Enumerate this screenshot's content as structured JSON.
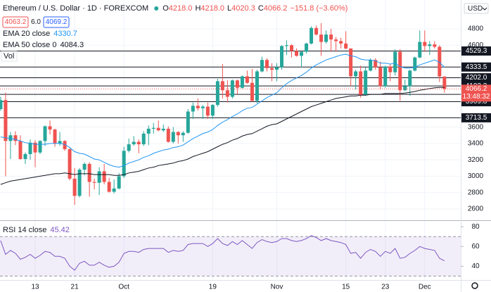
{
  "chart_data": {
    "type": "candlestick",
    "title": "Ethereum / U.S. Dollar · 1D · FOREXCOM",
    "header_keys": [
      "O",
      "H",
      "L",
      "C"
    ],
    "header_labels": [
      "4218.0",
      "4218.0",
      "4020.3",
      "4066.2"
    ],
    "header_change": "−151.8 (−3.60%)",
    "trade_boxes": [
      "4063.2",
      "6.0",
      "4069.2"
    ],
    "volume_label": "Vol",
    "currency": "USD",
    "countdown": "13:48:32",
    "up_color": "#26a69a",
    "down_color": "#ef5350",
    "grid": true,
    "categories": [
      null,
      null,
      null,
      null,
      null,
      null,
      null,
      "13",
      null,
      null,
      null,
      null,
      null,
      null,
      null,
      "21",
      null,
      null,
      null,
      null,
      null,
      null,
      null,
      null,
      null,
      "Oct",
      null,
      null,
      null,
      null,
      null,
      null,
      null,
      null,
      null,
      null,
      null,
      null,
      null,
      null,
      null,
      null,
      null,
      "19",
      null,
      null,
      null,
      null,
      null,
      null,
      null,
      null,
      null,
      null,
      null,
      null,
      "Nov",
      null,
      null,
      null,
      null,
      null,
      null,
      null,
      null,
      null,
      null,
      null,
      null,
      null,
      "15",
      null,
      null,
      null,
      null,
      null,
      null,
      null,
      "23",
      null,
      null,
      null,
      null,
      null,
      null,
      null,
      "Dec",
      null,
      null,
      null,
      null
    ],
    "ohlc": {
      "open": [
        3820,
        3930,
        3430,
        3500,
        3430,
        3210,
        3270,
        3410,
        3290,
        3430,
        3610,
        3570,
        3400,
        3430,
        3330,
        2970,
        2760,
        3080,
        3150,
        2930,
        2920,
        3060,
        2930,
        2810,
        2850,
        3000,
        3310,
        3390,
        3420,
        3390,
        3520,
        3580,
        3590,
        3560,
        3580,
        3420,
        3540,
        3500,
        3530,
        3790,
        3860,
        3830,
        3850,
        3740,
        3870,
        4160,
        4050,
        3970,
        4170,
        4080,
        4220,
        4140,
        3920,
        4280,
        4420,
        4320,
        4300,
        4330,
        4590,
        4600,
        4530,
        4470,
        4520,
        4620,
        4810,
        4730,
        4640,
        4730,
        4670,
        4650,
        4620,
        4560,
        4220,
        4280,
        3990,
        4290,
        4420,
        4330,
        4100,
        4340,
        4270,
        4520,
        4050,
        4100,
        4290,
        4450,
        4640,
        4590,
        4610,
        4580,
        4218
      ],
      "high": [
        3970,
        4020,
        3540,
        3550,
        3500,
        3290,
        3450,
        3440,
        3440,
        3620,
        3680,
        3580,
        3540,
        3440,
        3340,
        3100,
        3100,
        3170,
        3170,
        2970,
        3110,
        3150,
        2980,
        2960,
        3040,
        3360,
        3460,
        3490,
        3450,
        3550,
        3620,
        3650,
        3680,
        3630,
        3610,
        3600,
        3550,
        3550,
        3820,
        3900,
        3950,
        3870,
        3900,
        3880,
        4190,
        4370,
        4170,
        4180,
        4180,
        4230,
        4290,
        4310,
        4300,
        4460,
        4440,
        4380,
        4380,
        4600,
        4660,
        4610,
        4560,
        4520,
        4630,
        4830,
        4840,
        4870,
        4780,
        4800,
        4700,
        4690,
        4770,
        4560,
        4300,
        4350,
        4330,
        4440,
        4440,
        4400,
        4350,
        4370,
        4550,
        4550,
        4180,
        4300,
        4460,
        4780,
        4780,
        4650,
        4650,
        4600,
        4218
      ],
      "low": [
        3800,
        3000,
        3210,
        3380,
        3200,
        3150,
        3200,
        3110,
        3270,
        3370,
        3510,
        3360,
        3370,
        3310,
        2950,
        2650,
        2740,
        3010,
        2750,
        2840,
        2770,
        2900,
        2800,
        2790,
        2840,
        2980,
        3290,
        3370,
        3280,
        3370,
        3380,
        3520,
        3550,
        3540,
        3410,
        3400,
        3400,
        3420,
        3520,
        3700,
        3800,
        3700,
        3700,
        3700,
        3850,
        3950,
        3900,
        3950,
        4000,
        4070,
        4130,
        3910,
        3890,
        4270,
        4280,
        4160,
        4160,
        4300,
        4480,
        4450,
        4460,
        4330,
        4500,
        4610,
        4720,
        4470,
        4620,
        4520,
        4520,
        4560,
        4550,
        4100,
        4060,
        3960,
        3980,
        4280,
        4300,
        4060,
        4080,
        4160,
        4230,
        3920,
        4040,
        3980,
        4280,
        4440,
        4520,
        4480,
        4560,
        4150,
        4020.3
      ],
      "close": [
        3930,
        3430,
        3500,
        3430,
        3210,
        3270,
        3410,
        3290,
        3430,
        3610,
        3570,
        3400,
        3430,
        3330,
        2970,
        2760,
        3080,
        3150,
        2930,
        2920,
        3060,
        2930,
        2810,
        2850,
        3000,
        3310,
        3390,
        3420,
        3390,
        3520,
        3580,
        3590,
        3560,
        3580,
        3420,
        3540,
        3500,
        3530,
        3790,
        3860,
        3830,
        3850,
        3740,
        3870,
        4160,
        4050,
        3970,
        4170,
        4080,
        4220,
        4140,
        3920,
        4280,
        4420,
        4320,
        4300,
        4330,
        4590,
        4600,
        4530,
        4470,
        4520,
        4620,
        4810,
        4730,
        4640,
        4730,
        4670,
        4650,
        4620,
        4560,
        4220,
        4280,
        3990,
        4290,
        4420,
        4330,
        4100,
        4340,
        4270,
        4520,
        4050,
        4100,
        4290,
        4450,
        4640,
        4590,
        4610,
        4580,
        4218,
        4066.2
      ]
    },
    "series": [
      {
        "name": "EMA 20 close",
        "color": "#2196f3",
        "values": [
          3480,
          3470,
          3460,
          3450,
          3430,
          3410,
          3400,
          3390,
          3390,
          3390,
          3400,
          3400,
          3400,
          3390,
          3350,
          3300,
          3280,
          3270,
          3240,
          3210,
          3200,
          3170,
          3140,
          3120,
          3110,
          3130,
          3160,
          3180,
          3200,
          3230,
          3250,
          3280,
          3300,
          3320,
          3330,
          3350,
          3360,
          3380,
          3420,
          3460,
          3490,
          3520,
          3540,
          3570,
          3620,
          3660,
          3690,
          3730,
          3760,
          3800,
          3830,
          3840,
          3880,
          3920,
          3960,
          3990,
          4020,
          4080,
          4130,
          4170,
          4200,
          4230,
          4270,
          4320,
          4360,
          4390,
          4420,
          4440,
          4460,
          4480,
          4490,
          4470,
          4460,
          4430,
          4420,
          4420,
          4410,
          4380,
          4380,
          4370,
          4380,
          4340,
          4320,
          4320,
          4330,
          4360,
          4380,
          4400,
          4420,
          4390,
          4330.7
        ]
      },
      {
        "name": "EMA 50 close 0",
        "color": "#131722",
        "values": [
          2900,
          2920,
          2940,
          2950,
          2960,
          2970,
          2980,
          2990,
          3000,
          3010,
          3020,
          3030,
          3030,
          3040,
          3030,
          3020,
          3030,
          3030,
          3030,
          3020,
          3020,
          3020,
          3020,
          3010,
          3010,
          3020,
          3040,
          3050,
          3060,
          3080,
          3100,
          3110,
          3130,
          3140,
          3150,
          3160,
          3180,
          3190,
          3210,
          3240,
          3260,
          3280,
          3300,
          3330,
          3360,
          3390,
          3410,
          3440,
          3460,
          3490,
          3510,
          3520,
          3550,
          3580,
          3610,
          3630,
          3640,
          3670,
          3700,
          3730,
          3760,
          3790,
          3820,
          3850,
          3870,
          3890,
          3910,
          3930,
          3950,
          3960,
          3970,
          3980,
          3980,
          3990,
          3990,
          4000,
          4000,
          4000,
          4010,
          4010,
          4010,
          4010,
          4015,
          4025,
          4035,
          4050,
          4060,
          4070,
          4080,
          4085,
          4084.3
        ]
      }
    ],
    "levels": [
      4529.3,
      4333.5,
      {
        "value": 4202,
        "label": "4202.0"
      },
      4102.3,
      3999.5,
      3909.8,
      3713.5
    ],
    "ylim": [
      2471,
      5152
    ],
    "yticks": [
      4800,
      4600,
      3600,
      3400,
      3200,
      3000,
      2800,
      2600
    ],
    "rsi": {
      "name": "RSI 14 close",
      "color": "#7e57c2",
      "values": [
        66,
        52,
        56,
        53,
        47,
        49,
        52,
        48,
        51,
        55,
        54,
        50,
        50,
        48,
        40,
        36,
        43,
        45,
        41,
        41,
        44,
        41,
        39,
        40,
        44,
        53,
        55,
        55,
        54,
        57,
        58,
        58,
        58,
        58,
        54,
        56,
        55,
        56,
        62,
        63,
        63,
        63,
        60,
        63,
        68,
        63,
        61,
        65,
        62,
        66,
        62,
        58,
        64,
        67,
        65,
        64,
        65,
        68,
        68,
        66,
        65,
        66,
        68,
        71,
        69,
        66,
        68,
        66,
        65,
        64,
        62,
        53,
        54,
        48,
        54,
        57,
        55,
        50,
        55,
        53,
        58,
        48,
        49,
        53,
        56,
        60,
        58,
        57,
        56,
        48,
        45.42
      ],
      "ylim": [
        26,
        83
      ],
      "yticks": [
        80,
        60,
        40
      ],
      "band": [
        30,
        70
      ]
    }
  }
}
